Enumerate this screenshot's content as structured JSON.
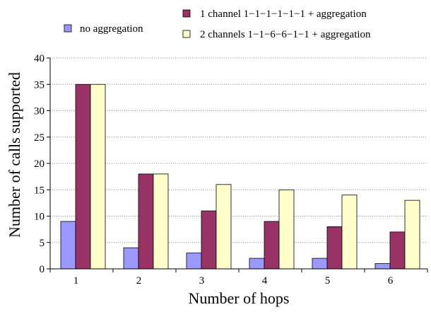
{
  "chart_data": {
    "type": "bar",
    "categories": [
      "1",
      "2",
      "3",
      "4",
      "5",
      "6"
    ],
    "series": [
      {
        "name": "no aggregation",
        "values": [
          9,
          4,
          3,
          2,
          2,
          1
        ],
        "color": "#9999ff"
      },
      {
        "name": "1 channel 1−1−1−1−1−1 + aggregation",
        "values": [
          35,
          18,
          11,
          9,
          8,
          7
        ],
        "color": "#993366"
      },
      {
        "name": "2 channels 1−1−6−6−1−1 + aggregation",
        "values": [
          35,
          18,
          16,
          15,
          14,
          13
        ],
        "color": "#ffffcc"
      }
    ],
    "xlabel": "Number of hops",
    "ylabel": "Number of calls supported",
    "ylim": [
      0,
      40
    ],
    "yticks": [
      "0",
      "5",
      "10",
      "15",
      "20",
      "25",
      "30",
      "35",
      "40"
    ],
    "grid": true,
    "legend_position": "top"
  }
}
